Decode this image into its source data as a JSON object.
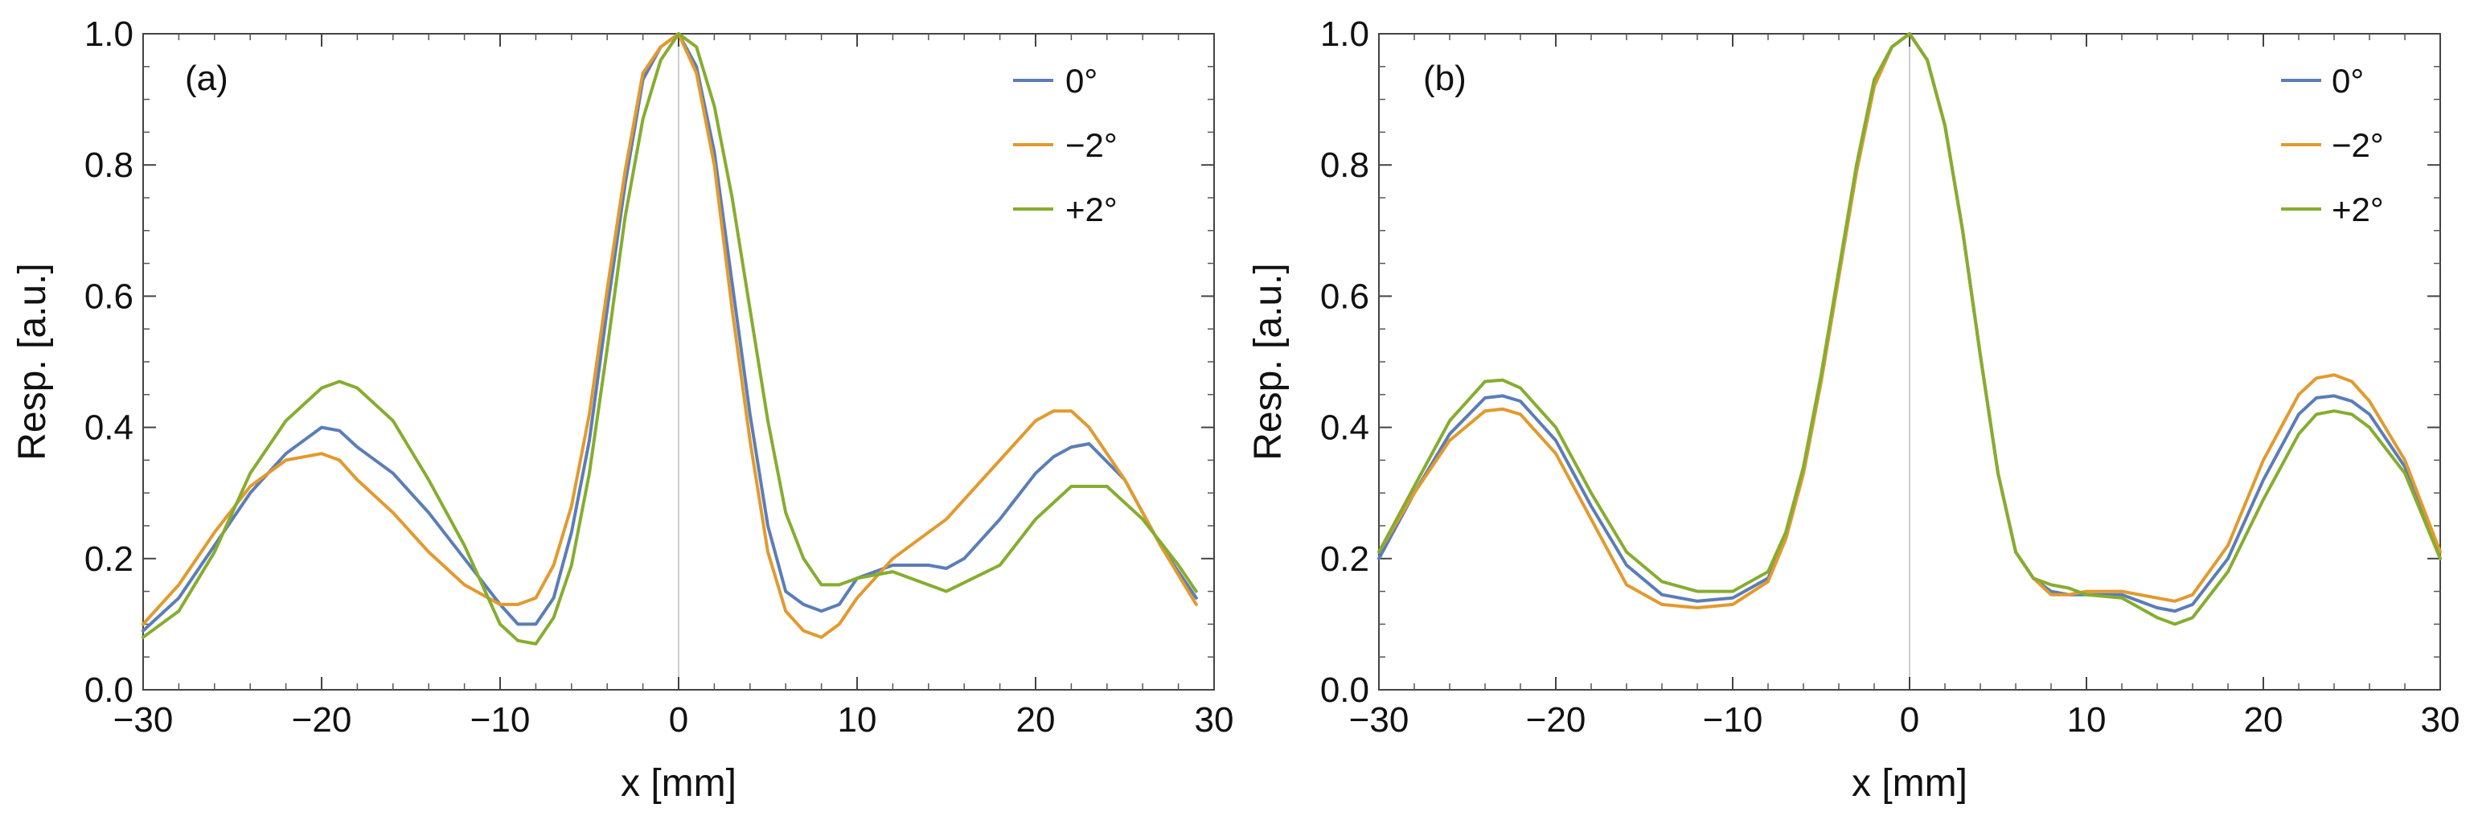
{
  "colors": {
    "s0": "#5b7db8",
    "sm2": "#e29a2e",
    "sp2": "#86ad2f"
  },
  "chart_data": [
    {
      "type": "line",
      "panel": "(a)",
      "xlabel": "x [mm]",
      "ylabel": "Resp. [a.u.]",
      "xlim": [
        -30,
        30
      ],
      "ylim": [
        0,
        1.0
      ],
      "xticks": [
        -30,
        -20,
        -10,
        0,
        10,
        20,
        30
      ],
      "xtick_labels": [
        "−30",
        "−20",
        "−10",
        "0",
        "10",
        "20",
        "30"
      ],
      "yticks": [
        0,
        0.2,
        0.4,
        0.6,
        0.8,
        1.0
      ],
      "ytick_labels": [
        "0.0",
        "0.2",
        "0.4",
        "0.6",
        "0.8",
        "1.0"
      ],
      "legend": "top-right",
      "series": [
        {
          "name": "0°",
          "color_key": "s0",
          "x": [
            -30,
            -28,
            -26,
            -24,
            -22,
            -20,
            -19,
            -18,
            -16,
            -14,
            -12,
            -10,
            -9,
            -8,
            -7,
            -6,
            -5,
            -4,
            -3,
            -2,
            -1,
            0,
            1,
            2,
            3,
            4,
            5,
            6,
            7,
            8,
            9,
            10,
            12,
            13,
            14,
            15,
            16,
            18,
            20,
            21,
            22,
            23,
            25,
            27,
            29
          ],
          "y": [
            0.09,
            0.14,
            0.22,
            0.3,
            0.36,
            0.4,
            0.395,
            0.37,
            0.33,
            0.27,
            0.2,
            0.13,
            0.1,
            0.1,
            0.14,
            0.24,
            0.38,
            0.58,
            0.77,
            0.93,
            0.98,
            1.0,
            0.95,
            0.82,
            0.62,
            0.42,
            0.25,
            0.15,
            0.13,
            0.12,
            0.13,
            0.17,
            0.19,
            0.19,
            0.19,
            0.185,
            0.2,
            0.26,
            0.33,
            0.355,
            0.37,
            0.375,
            0.32,
            0.22,
            0.14
          ]
        },
        {
          "name": "−2°",
          "color_key": "sm2",
          "x": [
            -30,
            -28,
            -26,
            -24,
            -22,
            -20,
            -19,
            -18,
            -16,
            -14,
            -12,
            -10,
            -9,
            -8,
            -7,
            -6,
            -5,
            -4,
            -3,
            -2,
            -1,
            0,
            1,
            2,
            3,
            4,
            5,
            6,
            7,
            8,
            9,
            10,
            12,
            15,
            18,
            20,
            21,
            22,
            23,
            25,
            27,
            29
          ],
          "y": [
            0.1,
            0.16,
            0.24,
            0.31,
            0.35,
            0.36,
            0.35,
            0.32,
            0.27,
            0.21,
            0.16,
            0.13,
            0.13,
            0.14,
            0.19,
            0.28,
            0.42,
            0.61,
            0.79,
            0.94,
            0.98,
            1.0,
            0.94,
            0.8,
            0.58,
            0.38,
            0.21,
            0.12,
            0.09,
            0.08,
            0.1,
            0.14,
            0.2,
            0.26,
            0.35,
            0.41,
            0.425,
            0.425,
            0.4,
            0.32,
            0.22,
            0.13
          ]
        },
        {
          "name": "+2°",
          "color_key": "sp2",
          "x": [
            -30,
            -28,
            -26,
            -24,
            -22,
            -20,
            -19,
            -18,
            -16,
            -14,
            -12,
            -10,
            -9,
            -8,
            -7,
            -6,
            -5,
            -4,
            -3,
            -2,
            -1,
            0,
            1,
            2,
            3,
            4,
            5,
            6,
            7,
            8,
            9,
            10,
            12,
            15,
            18,
            20,
            22,
            24,
            26,
            28,
            29
          ],
          "y": [
            0.08,
            0.12,
            0.21,
            0.33,
            0.41,
            0.46,
            0.47,
            0.46,
            0.41,
            0.32,
            0.22,
            0.1,
            0.075,
            0.07,
            0.11,
            0.19,
            0.33,
            0.52,
            0.72,
            0.87,
            0.96,
            1.0,
            0.98,
            0.89,
            0.75,
            0.58,
            0.41,
            0.27,
            0.2,
            0.16,
            0.16,
            0.17,
            0.18,
            0.15,
            0.19,
            0.26,
            0.31,
            0.31,
            0.26,
            0.19,
            0.15
          ]
        }
      ]
    },
    {
      "type": "line",
      "panel": "(b)",
      "xlabel": "x [mm]",
      "ylabel": "Resp. [a.u.]",
      "xlim": [
        -30,
        30
      ],
      "ylim": [
        0,
        1.0
      ],
      "xticks": [
        -30,
        -20,
        -10,
        0,
        10,
        20,
        30
      ],
      "xtick_labels": [
        "−30",
        "−20",
        "−10",
        "0",
        "10",
        "20",
        "30"
      ],
      "yticks": [
        0,
        0.2,
        0.4,
        0.6,
        0.8,
        1.0
      ],
      "ytick_labels": [
        "0.0",
        "0.2",
        "0.4",
        "0.6",
        "0.8",
        "1.0"
      ],
      "legend": "top-right",
      "series": [
        {
          "name": "0°",
          "color_key": "s0",
          "x": [
            -30,
            -28,
            -26,
            -24,
            -23,
            -22,
            -20,
            -18,
            -16,
            -14,
            -12,
            -10,
            -8,
            -7,
            -6,
            -5,
            -4,
            -3,
            -2,
            -1,
            0,
            1,
            2,
            3,
            4,
            5,
            6,
            7,
            8,
            9,
            10,
            12,
            14,
            15,
            16,
            18,
            20,
            22,
            23,
            24,
            25,
            26,
            28,
            30
          ],
          "y": [
            0.2,
            0.3,
            0.39,
            0.445,
            0.448,
            0.44,
            0.38,
            0.28,
            0.19,
            0.145,
            0.135,
            0.14,
            0.17,
            0.23,
            0.33,
            0.47,
            0.63,
            0.79,
            0.92,
            0.98,
            1.0,
            0.96,
            0.86,
            0.7,
            0.51,
            0.33,
            0.21,
            0.17,
            0.15,
            0.145,
            0.145,
            0.145,
            0.125,
            0.12,
            0.13,
            0.2,
            0.32,
            0.42,
            0.445,
            0.448,
            0.44,
            0.42,
            0.34,
            0.2
          ]
        },
        {
          "name": "−2°",
          "color_key": "sm2",
          "x": [
            -30,
            -28,
            -26,
            -24,
            -23,
            -22,
            -20,
            -18,
            -16,
            -14,
            -12,
            -10,
            -8,
            -7,
            -6,
            -5,
            -4,
            -3,
            -2,
            -1,
            0,
            1,
            2,
            3,
            4,
            5,
            6,
            7,
            8,
            9,
            10,
            12,
            14,
            15,
            16,
            18,
            20,
            22,
            23,
            24,
            25,
            26,
            28,
            30
          ],
          "y": [
            0.21,
            0.3,
            0.38,
            0.425,
            0.428,
            0.42,
            0.36,
            0.26,
            0.16,
            0.13,
            0.125,
            0.13,
            0.165,
            0.23,
            0.33,
            0.47,
            0.63,
            0.79,
            0.92,
            0.98,
            1.0,
            0.96,
            0.86,
            0.7,
            0.51,
            0.33,
            0.21,
            0.17,
            0.145,
            0.145,
            0.15,
            0.15,
            0.14,
            0.135,
            0.145,
            0.22,
            0.35,
            0.45,
            0.475,
            0.48,
            0.47,
            0.44,
            0.35,
            0.21
          ]
        },
        {
          "name": "+2°",
          "color_key": "sp2",
          "x": [
            -30,
            -28,
            -26,
            -24,
            -23,
            -22,
            -20,
            -18,
            -16,
            -14,
            -12,
            -10,
            -8,
            -7,
            -6,
            -5,
            -4,
            -3,
            -2,
            -1,
            0,
            1,
            2,
            3,
            4,
            5,
            6,
            7,
            8,
            9,
            10,
            12,
            14,
            15,
            16,
            18,
            20,
            22,
            23,
            24,
            25,
            26,
            28,
            30
          ],
          "y": [
            0.21,
            0.31,
            0.41,
            0.47,
            0.472,
            0.46,
            0.4,
            0.3,
            0.21,
            0.165,
            0.15,
            0.15,
            0.18,
            0.24,
            0.34,
            0.48,
            0.64,
            0.8,
            0.93,
            0.98,
            1.0,
            0.96,
            0.86,
            0.7,
            0.51,
            0.33,
            0.21,
            0.17,
            0.16,
            0.155,
            0.145,
            0.14,
            0.11,
            0.1,
            0.11,
            0.18,
            0.29,
            0.39,
            0.42,
            0.425,
            0.42,
            0.4,
            0.33,
            0.2
          ]
        }
      ]
    }
  ]
}
